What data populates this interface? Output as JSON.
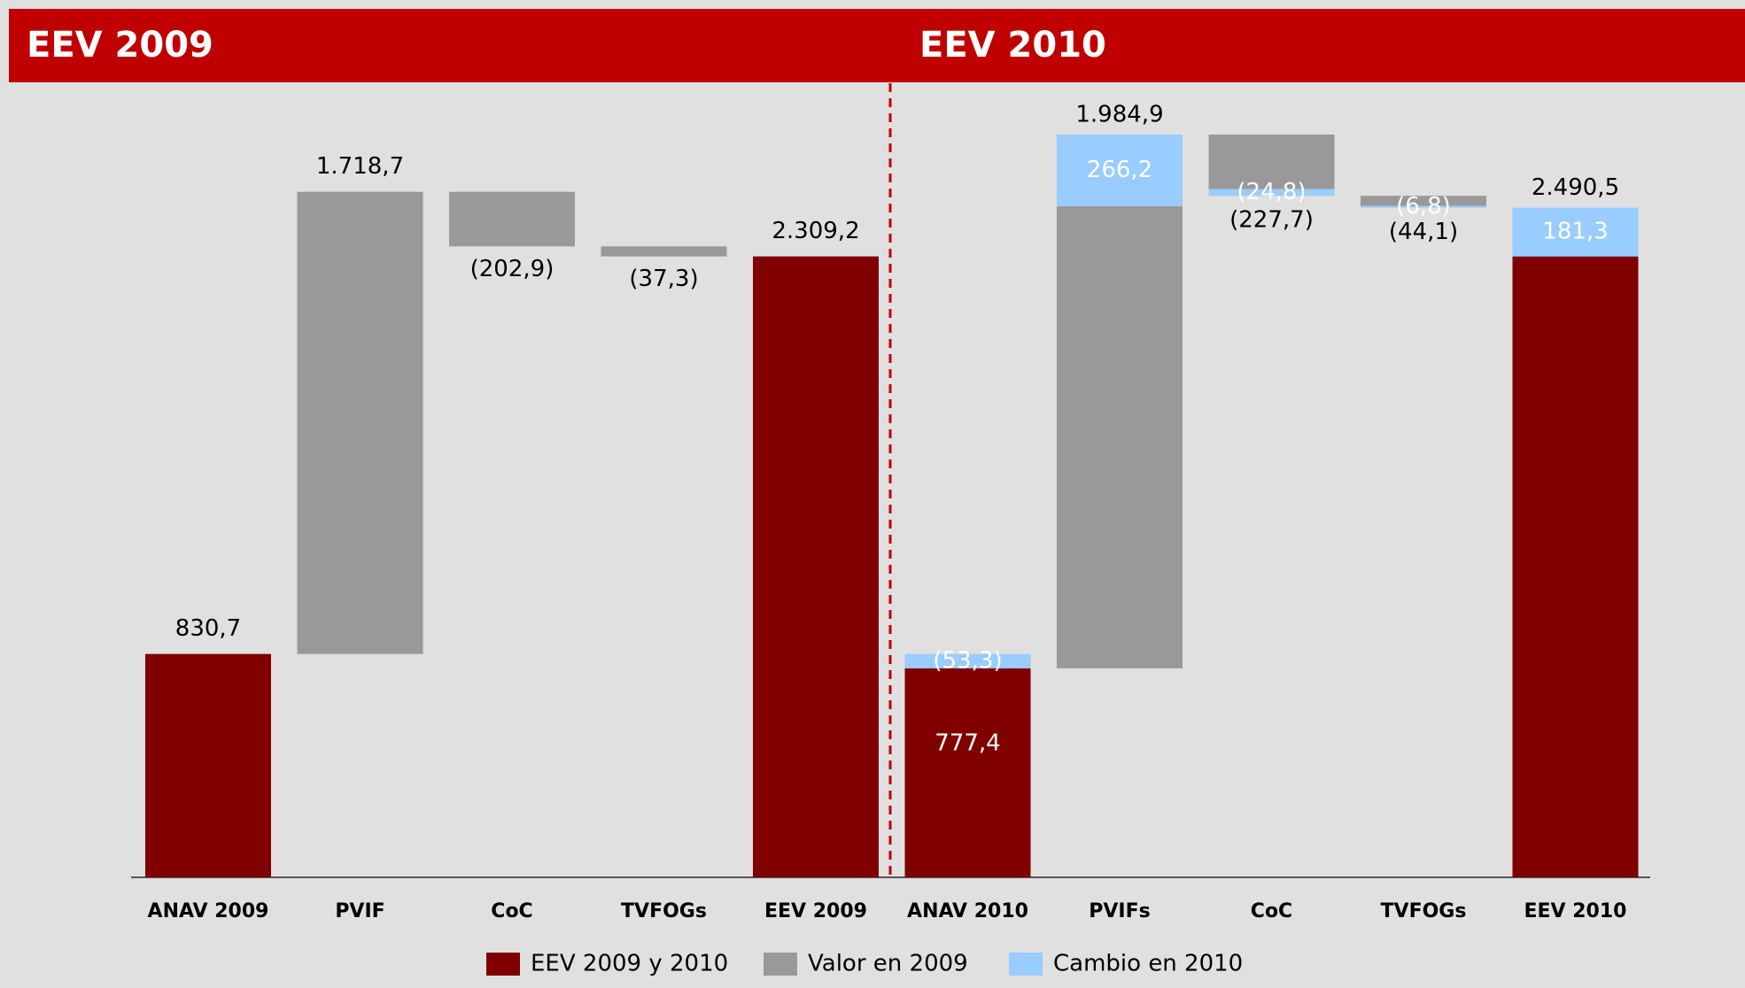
{
  "chart_data": {
    "type": "waterfall",
    "panel_titles": [
      "EEV 2009",
      "EEV 2010"
    ],
    "categories": [
      "ANAV 2009",
      "PVIF",
      "CoC",
      "TVFOGs",
      "EEV 2009",
      "ANAV 2010",
      "PVIFs",
      "CoC",
      "TVFOGs",
      "EEV 2010"
    ],
    "series": [
      {
        "name": "EEV 2009 y 2010",
        "color": "#800000",
        "role": "total",
        "values": [
          830.7,
          null,
          null,
          null,
          2309.2,
          777.4,
          null,
          null,
          null,
          2309.2
        ],
        "value_labels": [
          "830,7",
          null,
          null,
          null,
          "2.309,2",
          "777,4",
          null,
          null,
          null,
          null
        ]
      },
      {
        "name": "Valor en 2009",
        "color": "#999999",
        "role": "step",
        "values": [
          null,
          1718.7,
          -202.9,
          -37.3,
          null,
          null,
          1718.7,
          -202.9,
          -37.3,
          null
        ],
        "value_labels": [
          null,
          "1.718,7",
          "(202,9)",
          "(37,3)",
          null,
          null,
          null,
          null,
          null,
          null
        ]
      },
      {
        "name": "Cambio en 2010",
        "color": "#99ccff",
        "role": "step",
        "values": [
          null,
          null,
          null,
          null,
          null,
          -53.3,
          266.2,
          -24.8,
          -6.8,
          181.3
        ],
        "value_labels": [
          null,
          null,
          null,
          null,
          null,
          "(53,3)",
          "266,2",
          "(24,8)",
          "(6,8)",
          "181,3"
        ]
      }
    ],
    "totals": [
      null,
      null,
      null,
      null,
      null,
      null,
      1984.9,
      -227.7,
      -44.1,
      2490.5
    ],
    "total_labels": [
      null,
      null,
      null,
      null,
      null,
      null,
      "1.984,9",
      "(227,7)",
      "(44,1)",
      "2.490,5"
    ],
    "ylim": [
      0,
      2950
    ]
  }
}
